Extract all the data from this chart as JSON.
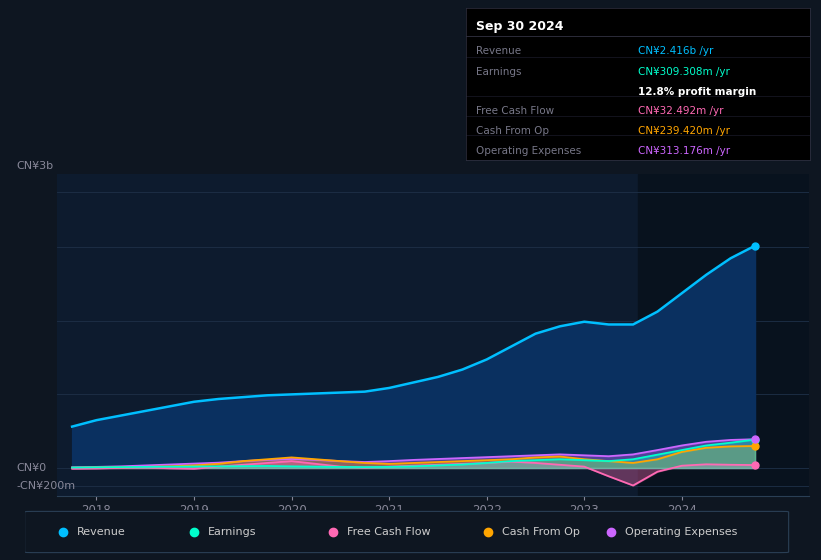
{
  "bg_color": "#0e1621",
  "plot_bg": "#0d1b2e",
  "title": "Sep 30 2024",
  "ylabel_top": "CN¥3b",
  "ylabel_zero": "CN¥0",
  "ylabel_neg": "-CN¥200m",
  "ylim": [
    -300,
    3200
  ],
  "xlim_start": 2017.6,
  "xlim_end": 2025.3,
  "xticks": [
    2018,
    2019,
    2020,
    2021,
    2022,
    2023,
    2024
  ],
  "highlight_x_start": 2023.55,
  "legend_items": [
    {
      "label": "Revenue",
      "color": "#00bfff"
    },
    {
      "label": "Earnings",
      "color": "#00ffcc"
    },
    {
      "label": "Free Cash Flow",
      "color": "#ff69b4"
    },
    {
      "label": "Cash From Op",
      "color": "#ffa500"
    },
    {
      "label": "Operating Expenses",
      "color": "#cc66ff"
    }
  ],
  "info_rows": [
    {
      "label": "Revenue",
      "value": "CN¥2.416b /yr",
      "value_color": "#00bfff",
      "bold_label": false,
      "bold_value": false
    },
    {
      "label": "Earnings",
      "value": "CN¥309.308m /yr",
      "value_color": "#00ffcc",
      "bold_label": false,
      "bold_value": false
    },
    {
      "label": "",
      "value": "12.8% profit margin",
      "value_color": "#ffffff",
      "bold_label": false,
      "bold_value": true
    },
    {
      "label": "Free Cash Flow",
      "value": "CN¥32.492m /yr",
      "value_color": "#ff69b4",
      "bold_label": false,
      "bold_value": false
    },
    {
      "label": "Cash From Op",
      "value": "CN¥239.420m /yr",
      "value_color": "#ffa500",
      "bold_label": false,
      "bold_value": false
    },
    {
      "label": "Operating Expenses",
      "value": "CN¥313.176m /yr",
      "value_color": "#cc66ff",
      "bold_label": false,
      "bold_value": false
    }
  ],
  "revenue": {
    "x": [
      2017.75,
      2018.0,
      2018.25,
      2018.5,
      2018.75,
      2019.0,
      2019.25,
      2019.5,
      2019.75,
      2020.0,
      2020.25,
      2020.5,
      2020.75,
      2021.0,
      2021.25,
      2021.5,
      2021.75,
      2022.0,
      2022.25,
      2022.5,
      2022.75,
      2023.0,
      2023.25,
      2023.5,
      2023.75,
      2024.0,
      2024.25,
      2024.5,
      2024.75
    ],
    "y": [
      450,
      520,
      570,
      620,
      670,
      720,
      750,
      770,
      790,
      800,
      810,
      820,
      830,
      870,
      930,
      990,
      1070,
      1180,
      1320,
      1460,
      1540,
      1590,
      1560,
      1560,
      1700,
      1900,
      2100,
      2280,
      2416
    ],
    "color": "#00bfff",
    "fill_color": "#0a3060"
  },
  "earnings": {
    "x": [
      2017.75,
      2018.0,
      2018.25,
      2018.5,
      2018.75,
      2019.0,
      2019.25,
      2019.5,
      2019.75,
      2020.0,
      2020.25,
      2020.5,
      2020.75,
      2021.0,
      2021.25,
      2021.5,
      2021.75,
      2022.0,
      2022.25,
      2022.5,
      2022.75,
      2023.0,
      2023.25,
      2023.5,
      2023.75,
      2024.0,
      2024.25,
      2024.5,
      2024.75
    ],
    "y": [
      5,
      8,
      10,
      12,
      14,
      16,
      18,
      20,
      22,
      18,
      15,
      12,
      10,
      12,
      18,
      28,
      38,
      55,
      75,
      85,
      95,
      85,
      75,
      95,
      145,
      195,
      245,
      275,
      309
    ],
    "color": "#00ffcc"
  },
  "free_cash_flow": {
    "x": [
      2017.75,
      2018.0,
      2018.25,
      2018.5,
      2018.75,
      2019.0,
      2019.25,
      2019.5,
      2019.75,
      2020.0,
      2020.25,
      2020.5,
      2020.75,
      2021.0,
      2021.25,
      2021.5,
      2021.75,
      2022.0,
      2022.25,
      2022.5,
      2022.75,
      2023.0,
      2023.25,
      2023.5,
      2023.75,
      2024.0,
      2024.25,
      2024.5,
      2024.75
    ],
    "y": [
      -8,
      -5,
      2,
      5,
      -3,
      -8,
      15,
      35,
      55,
      75,
      45,
      15,
      5,
      15,
      25,
      35,
      45,
      55,
      70,
      55,
      35,
      15,
      -90,
      -190,
      -40,
      25,
      40,
      35,
      32
    ],
    "color": "#ff69b4"
  },
  "cash_from_op": {
    "x": [
      2017.75,
      2018.0,
      2018.25,
      2018.5,
      2018.75,
      2019.0,
      2019.25,
      2019.5,
      2019.75,
      2020.0,
      2020.25,
      2020.5,
      2020.75,
      2021.0,
      2021.25,
      2021.5,
      2021.75,
      2022.0,
      2022.25,
      2022.5,
      2022.75,
      2023.0,
      2023.25,
      2023.5,
      2023.75,
      2024.0,
      2024.25,
      2024.5,
      2024.75
    ],
    "y": [
      3,
      6,
      8,
      12,
      18,
      28,
      45,
      75,
      95,
      115,
      95,
      75,
      55,
      45,
      55,
      65,
      75,
      85,
      95,
      115,
      125,
      95,
      75,
      55,
      95,
      175,
      220,
      235,
      239
    ],
    "color": "#ffa500"
  },
  "operating_expenses": {
    "x": [
      2017.75,
      2018.0,
      2018.25,
      2018.5,
      2018.75,
      2019.0,
      2019.25,
      2019.5,
      2019.75,
      2020.0,
      2020.25,
      2020.5,
      2020.75,
      2021.0,
      2021.25,
      2021.5,
      2021.75,
      2022.0,
      2022.25,
      2022.5,
      2022.75,
      2023.0,
      2023.25,
      2023.5,
      2023.75,
      2024.0,
      2024.25,
      2024.5,
      2024.75
    ],
    "y": [
      8,
      12,
      18,
      28,
      38,
      48,
      58,
      75,
      88,
      98,
      88,
      75,
      65,
      75,
      88,
      98,
      108,
      118,
      128,
      138,
      148,
      138,
      128,
      148,
      195,
      245,
      285,
      305,
      313
    ],
    "color": "#cc66ff"
  }
}
